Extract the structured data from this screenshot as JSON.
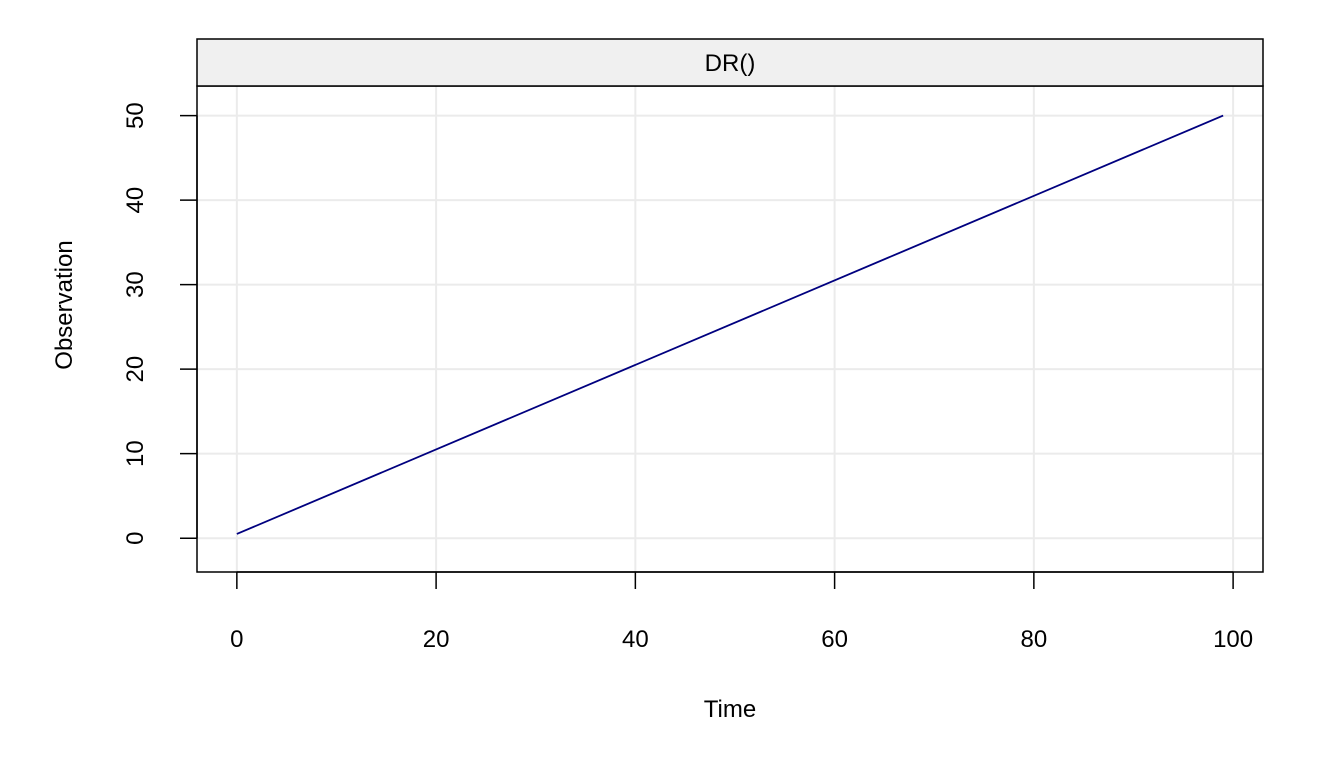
{
  "chart_data": {
    "type": "line",
    "title": "DR()",
    "xlabel": "Time",
    "ylabel": "Observation",
    "xlim": [
      -4,
      103
    ],
    "ylim": [
      -4,
      53.5
    ],
    "x_ticks": [
      0,
      20,
      40,
      60,
      80,
      100
    ],
    "x_tick_labels": [
      "0",
      "20",
      "40",
      "60",
      "80",
      "100"
    ],
    "y_ticks": [
      0,
      10,
      20,
      30,
      40,
      50
    ],
    "y_tick_labels": [
      "0",
      "10",
      "20",
      "30",
      "40",
      "50"
    ],
    "grid": true,
    "series": [
      {
        "x": [
          0,
          99
        ],
        "values": [
          0.5,
          50
        ],
        "color": "#00007F"
      }
    ]
  },
  "colors": {
    "line": "#00007F",
    "grid": "#EBEBEB",
    "strip_bg": "#F0F0F0",
    "frame": "#000000"
  }
}
